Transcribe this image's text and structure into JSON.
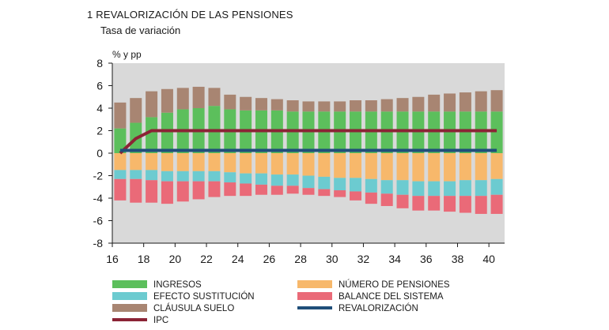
{
  "header": {
    "title": "1  REVALORIZACIÓN DE LAS PENSIONES",
    "subtitle": "Tasa de variación"
  },
  "chart_data": {
    "type": "bar",
    "title": "1  REVALORIZACIÓN DE LAS PENSIONES",
    "subtitle": "Tasa de variación",
    "ylabel": "% y pp",
    "xlabel": "",
    "ylim": [
      -8,
      8
    ],
    "yticks": [
      8,
      6,
      4,
      2,
      0,
      -2,
      -4,
      -6,
      -8
    ],
    "xticks": [
      "16",
      "18",
      "20",
      "22",
      "24",
      "26",
      "28",
      "30",
      "32",
      "34",
      "36",
      "38",
      "40"
    ],
    "x": [
      16.5,
      17.5,
      18.5,
      19.5,
      20.5,
      21.5,
      22.5,
      23.5,
      24.5,
      25.5,
      26.5,
      27.5,
      28.5,
      29.5,
      30.5,
      31.5,
      32.5,
      33.5,
      34.5,
      35.5,
      36.5,
      37.5,
      38.5,
      39.5,
      40.5
    ],
    "stacked": true,
    "series": [
      {
        "name": "INGRESOS",
        "color": "#5cbf5c",
        "values": [
          2.2,
          2.7,
          3.2,
          3.6,
          3.9,
          4.0,
          4.2,
          3.9,
          3.8,
          3.8,
          3.8,
          3.7,
          3.7,
          3.7,
          3.7,
          3.7,
          3.7,
          3.7,
          3.7,
          3.7,
          3.7,
          3.7,
          3.7,
          3.7,
          3.7
        ]
      },
      {
        "name": "CLÁUSULA SUELO",
        "color": "#a88572",
        "values": [
          2.3,
          2.2,
          2.3,
          2.1,
          1.9,
          1.9,
          1.6,
          1.3,
          1.2,
          1.1,
          1.0,
          1.0,
          0.9,
          0.9,
          0.9,
          1.0,
          1.0,
          1.1,
          1.2,
          1.3,
          1.5,
          1.6,
          1.7,
          1.8,
          1.9
        ]
      },
      {
        "name": "NÚMERO DE PENSIONES",
        "color": "#f7b86b",
        "values": [
          -1.5,
          -1.5,
          -1.5,
          -1.6,
          -1.6,
          -1.6,
          -1.6,
          -1.7,
          -1.8,
          -1.8,
          -1.9,
          -1.9,
          -2.0,
          -2.1,
          -2.2,
          -2.2,
          -2.3,
          -2.4,
          -2.4,
          -2.5,
          -2.5,
          -2.5,
          -2.4,
          -2.4,
          -2.3
        ]
      },
      {
        "name": "EFECTO SUSTITUCIÓN",
        "color": "#6ccbd0",
        "values": [
          -0.8,
          -0.8,
          -0.9,
          -0.9,
          -0.9,
          -0.9,
          -0.9,
          -0.9,
          -0.9,
          -1.0,
          -1.0,
          -1.0,
          -1.1,
          -1.1,
          -1.1,
          -1.2,
          -1.2,
          -1.2,
          -1.3,
          -1.3,
          -1.3,
          -1.3,
          -1.4,
          -1.4,
          -1.4
        ]
      },
      {
        "name": "BALANCE DEL SISTEMA",
        "color": "#ea6a78",
        "values": [
          -1.9,
          -2.1,
          -2.0,
          -2.0,
          -1.8,
          -1.6,
          -1.4,
          -1.2,
          -1.1,
          -0.9,
          -0.8,
          -0.7,
          -0.6,
          -0.6,
          -0.6,
          -0.8,
          -1.0,
          -1.1,
          -1.2,
          -1.3,
          -1.3,
          -1.4,
          -1.5,
          -1.6,
          -1.7
        ]
      }
    ],
    "lines": [
      {
        "name": "IPC",
        "color": "#8b2335",
        "x": [
          16.5,
          17.5,
          18.5,
          40.5
        ],
        "values": [
          0.0,
          1.3,
          2.0,
          2.0
        ]
      },
      {
        "name": "REVALORIZACIÓN",
        "color": "#1f4e79",
        "x": [
          16.5,
          40.5
        ],
        "values": [
          0.25,
          0.25
        ]
      }
    ],
    "legend": {
      "placement": "bottom",
      "columns": [
        [
          "INGRESOS",
          "EFECTO SUSTITUCIÓN",
          "CLÁUSULA SUELO",
          "IPC"
        ],
        [
          "NÚMERO DE PENSIONES",
          "BALANCE DEL SISTEMA",
          "REVALORIZACIÓN"
        ]
      ]
    },
    "grid": false,
    "plot_background": "#d9d9d9"
  }
}
